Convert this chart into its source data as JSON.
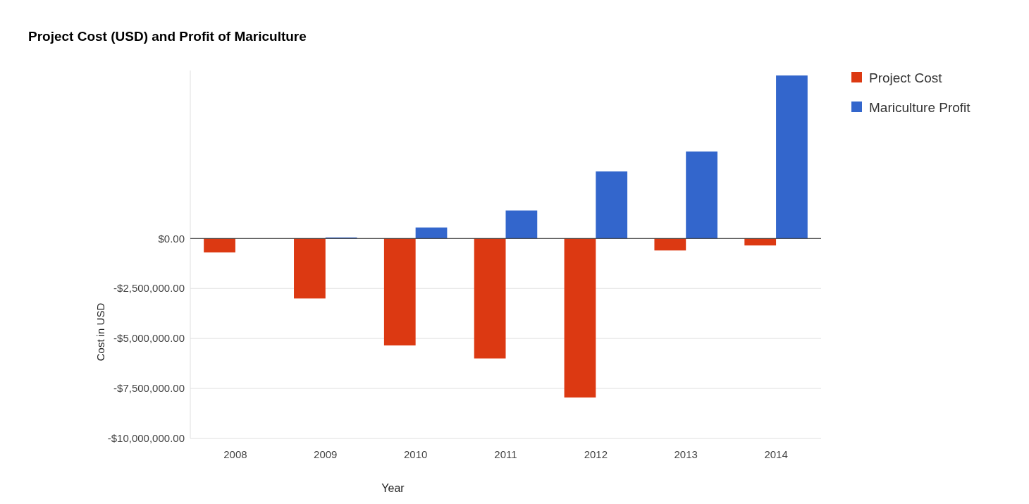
{
  "chart_data": {
    "type": "bar",
    "title": "Project Cost (USD) and Profit of Mariculture",
    "xlabel": "Year",
    "ylabel": "Cost in USD",
    "categories": [
      "2008",
      "2009",
      "2010",
      "2011",
      "2012",
      "2013",
      "2014"
    ],
    "series": [
      {
        "name": "Project Cost",
        "color": "#dc3912",
        "values": [
          -700000,
          -3000000,
          -5350000,
          -6000000,
          -7950000,
          -600000,
          -350000
        ]
      },
      {
        "name": "Mariculture Profit",
        "color": "#3366cc",
        "values": [
          0,
          50000,
          550000,
          1400000,
          3350000,
          4350000,
          8150000
        ]
      }
    ],
    "ylim": [
      -10000000,
      8400000
    ],
    "yticks": [
      {
        "value": 0,
        "label": "$0.00"
      },
      {
        "value": -2500000,
        "label": "-$2,500,000.00"
      },
      {
        "value": -5000000,
        "label": "-$5,000,000.00"
      },
      {
        "value": -7500000,
        "label": "-$7,500,000.00"
      },
      {
        "value": -10000000,
        "label": "-$10,000,000.00"
      }
    ],
    "grid": "y",
    "legend": "top right"
  }
}
